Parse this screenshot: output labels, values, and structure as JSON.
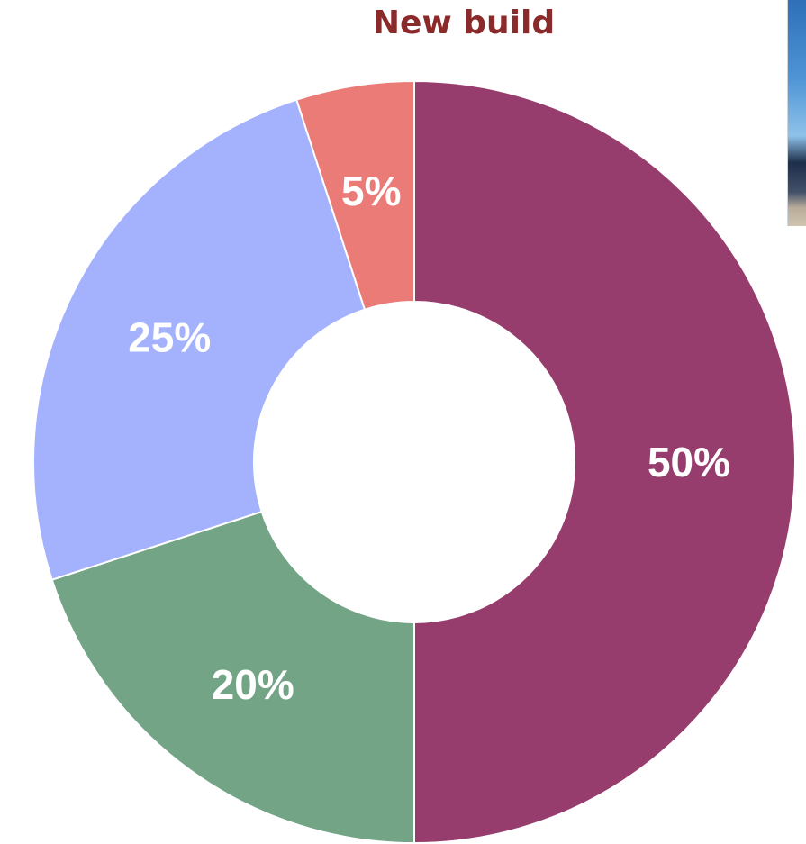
{
  "chart_data": {
    "type": "pie",
    "variant": "donut",
    "title": "New build",
    "title_color": "#8b2a2a",
    "slices": [
      {
        "value": 50,
        "label": "50%",
        "color": "#963d6e"
      },
      {
        "value": 20,
        "label": "20%",
        "color": "#73a486"
      },
      {
        "value": 25,
        "label": "25%",
        "color": "#a4b2fd"
      },
      {
        "value": 5,
        "label": "5%",
        "color": "#eb7b76"
      }
    ],
    "start_angle": "12 o'clock",
    "direction": "clockwise",
    "legend": "none"
  }
}
